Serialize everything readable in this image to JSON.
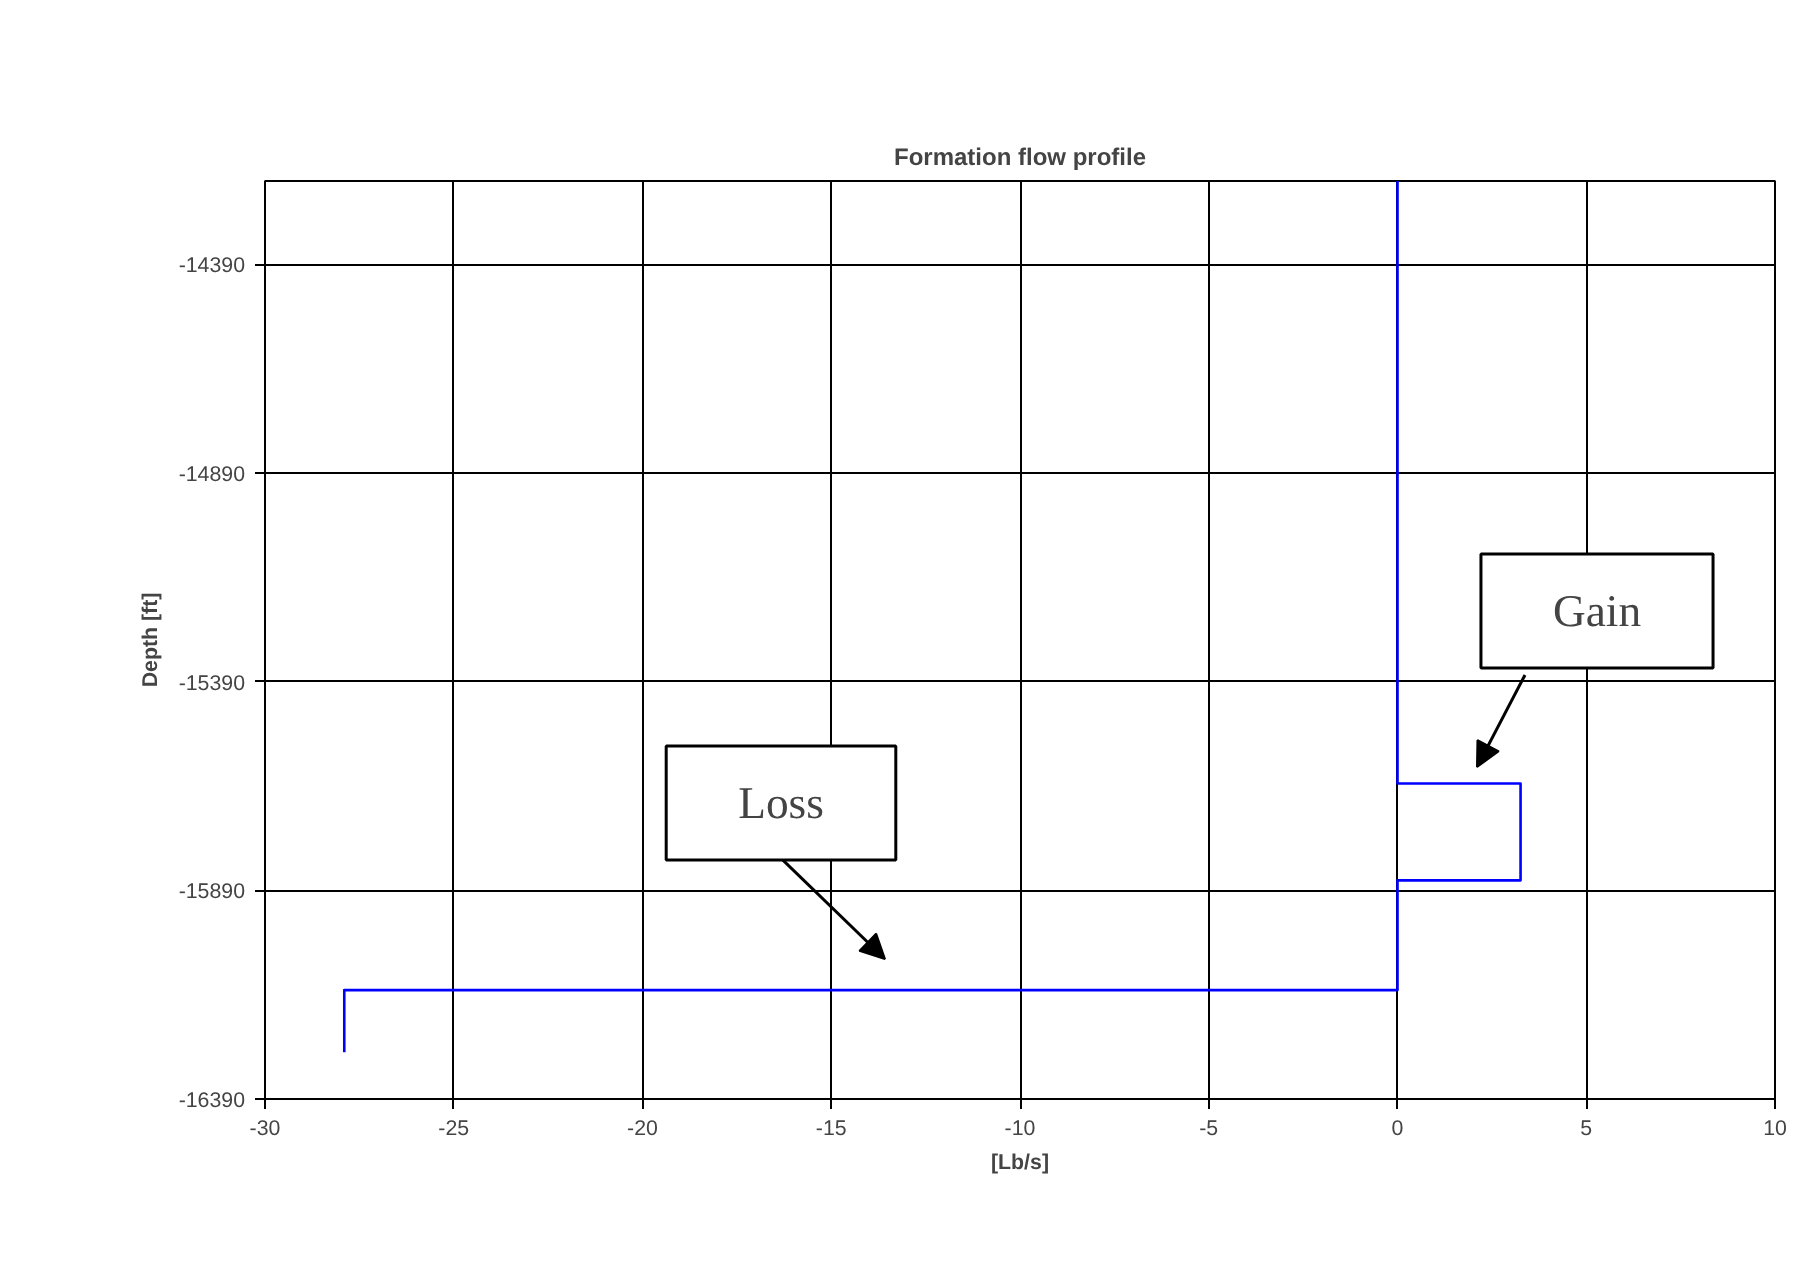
{
  "chart_data": {
    "type": "line",
    "title": "Formation flow profile",
    "xlabel": "[Lb/s]",
    "ylabel": "Depth [ft]",
    "series": [
      {
        "color": "#0000ff",
        "x": [
          0,
          0,
          3.26,
          3.26,
          0,
          0,
          -27.9,
          -27.9
        ],
        "values": [
          -14190,
          -15634,
          -15634,
          -15866,
          -15866,
          -16129,
          -16129,
          -16278
        ]
      }
    ],
    "xlim": [
      -30,
      10
    ],
    "xticks": [
      -30,
      -25,
      -20,
      -15,
      -10,
      -5,
      0,
      5,
      10
    ],
    "ylim": [
      -16390,
      -14190
    ],
    "yticks": [
      -16390,
      -15890,
      -15390,
      -14890,
      -14390
    ],
    "annotations": [
      "Gain",
      "Loss"
    ],
    "grid": true,
    "marker": "none",
    "line_style": "solid"
  }
}
